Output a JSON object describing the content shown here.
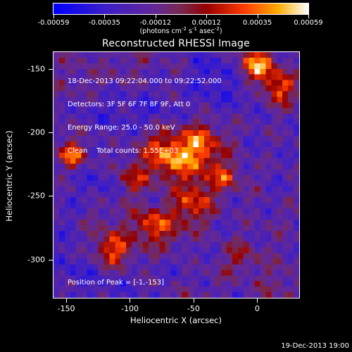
{
  "colorbar": {
    "tick_labels": [
      "-0.00059",
      "-0.00035",
      "-0.00012",
      "0.00012",
      "0.00035",
      "0.00059"
    ],
    "units_prefix": "(photons cm",
    "units_exp1": "-2",
    "units_mid1": " s",
    "units_exp2": "-1",
    "units_mid2": " asec",
    "units_exp3": "-2",
    "units_suffix": ")"
  },
  "image": {
    "title": "Reconstructed RHESSI Image",
    "annotation_lines": [
      "18-Dec-2013 09:22:04.000 to 09:22:52.000",
      "Detectors: 3F 5F 6F 7F 8F 9F, Att 0",
      "Energy Range: 25.0 - 50.0 keV",
      "Clean    Total counts: 1.55E+03"
    ],
    "peak_text": "Position of Peak = [-1,-153]",
    "colortable": "red-temperature"
  },
  "axes": {
    "xlabel": "Heliocentric X (arcsec)",
    "ylabel": "Heliocentric Y (arcsec)",
    "x_range": [
      -160,
      33
    ],
    "y_range": [
      -330,
      -137
    ],
    "x_ticks": [
      "-150",
      "-100",
      "-50",
      "0"
    ],
    "y_ticks": [
      "-150",
      "-200",
      "-250",
      "-300"
    ]
  },
  "footer": {
    "date": "19-Dec-2013 19:00"
  }
}
